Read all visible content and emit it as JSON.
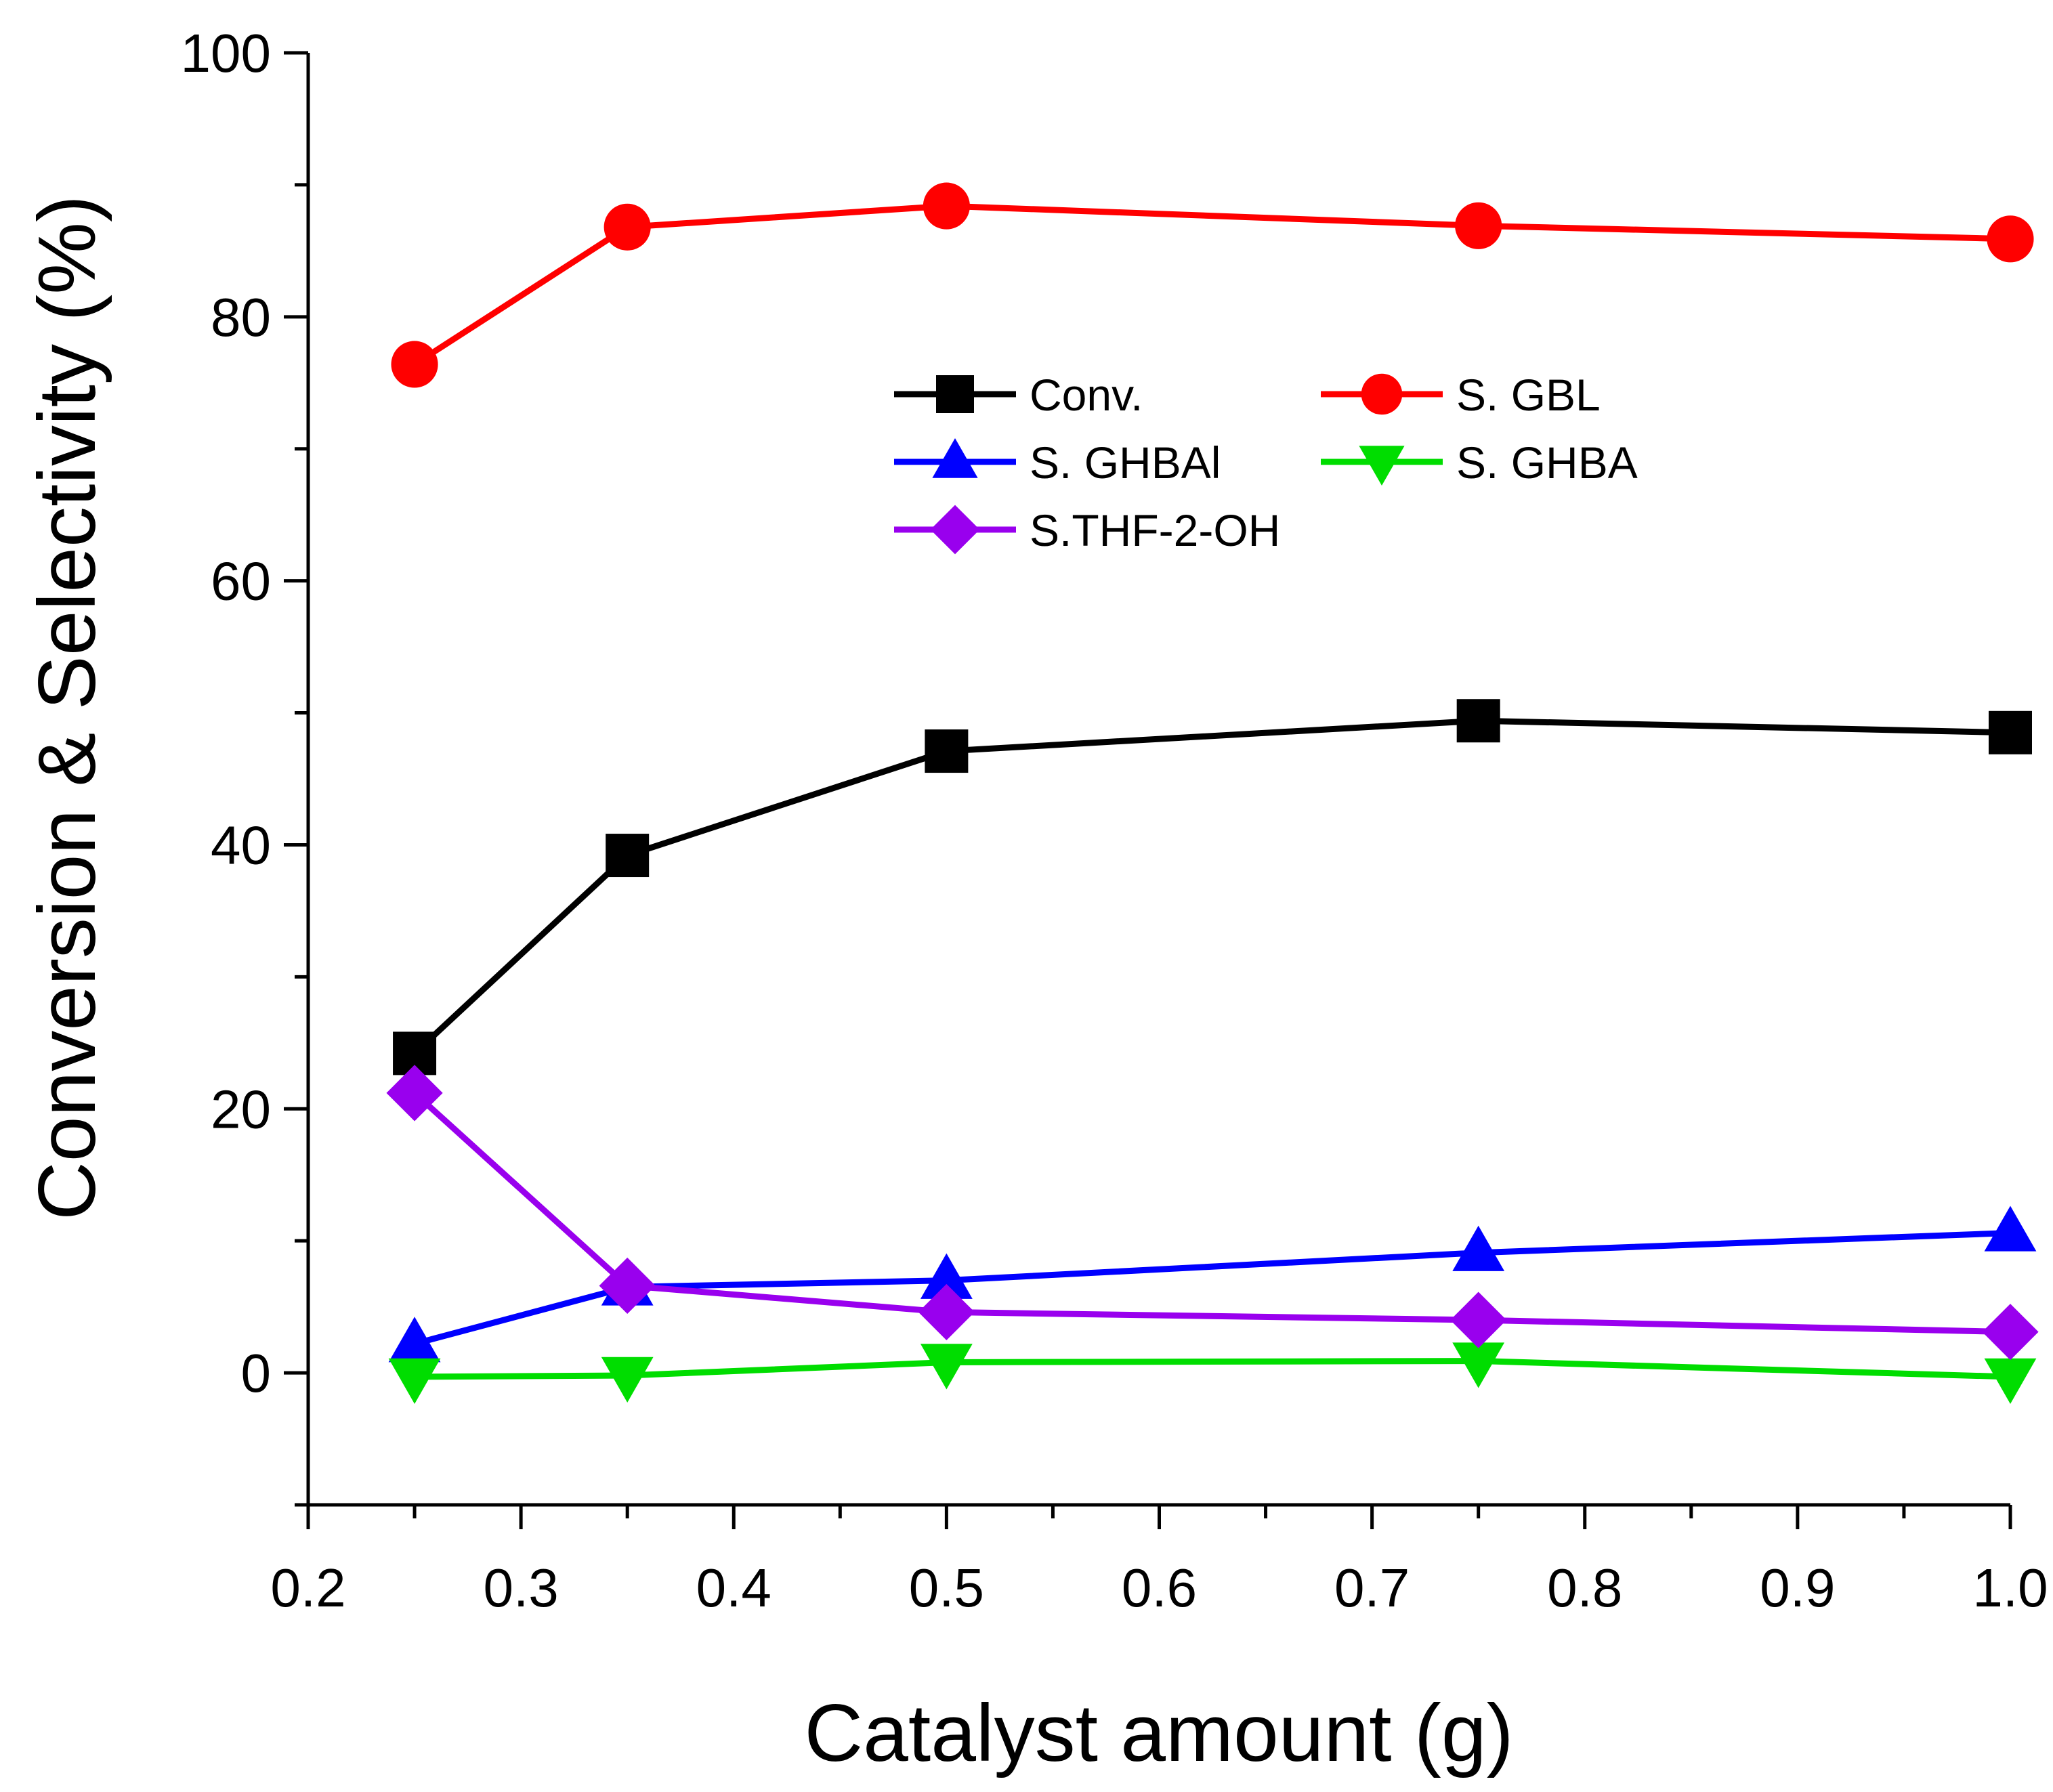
{
  "chart_data": {
    "type": "line",
    "title": "",
    "xlabel": "Catalyst amount (g)",
    "ylabel": "Conversion & Selectivity (%)",
    "xlim": [
      0.2,
      1.0
    ],
    "ylim": [
      -10,
      100
    ],
    "xticks": [
      0.2,
      0.3,
      0.4,
      0.5,
      0.6,
      0.7,
      0.8,
      0.9,
      1.0
    ],
    "xtick_labels": [
      "0.2",
      "0.3",
      "0.4",
      "0.5",
      "0.6",
      "0.7",
      "0.8",
      "0.9",
      "1.0"
    ],
    "yticks": [
      0,
      20,
      40,
      60,
      80,
      100
    ],
    "ytick_labels": [
      "0",
      "20",
      "40",
      "60",
      "80",
      "100"
    ],
    "grid": false,
    "legend_position": "upper-center",
    "x": [
      0.25,
      0.35,
      0.5,
      0.75,
      1.0
    ],
    "series": [
      {
        "name": "Conv.",
        "color": "#000000",
        "marker": "square",
        "values": [
          24.2,
          39.2,
          47.1,
          49.4,
          48.5
        ]
      },
      {
        "name": "S. GBL",
        "color": "#ff0000",
        "marker": "circle",
        "values": [
          76.4,
          86.8,
          88.4,
          86.9,
          85.9
        ]
      },
      {
        "name": "S. GHBAl",
        "color": "#0000ff",
        "marker": "triangle-up",
        "values": [
          2.2,
          6.5,
          7.0,
          9.1,
          10.6
        ]
      },
      {
        "name": "S. GHBA",
        "color": "#00dd00",
        "marker": "triangle-down",
        "values": [
          -0.3,
          -0.2,
          0.8,
          0.9,
          -0.3
        ]
      },
      {
        "name": "S.THF-2-OH",
        "color": "#9900ee",
        "marker": "diamond",
        "values": [
          21.2,
          6.6,
          4.6,
          4.0,
          3.1
        ]
      }
    ]
  }
}
